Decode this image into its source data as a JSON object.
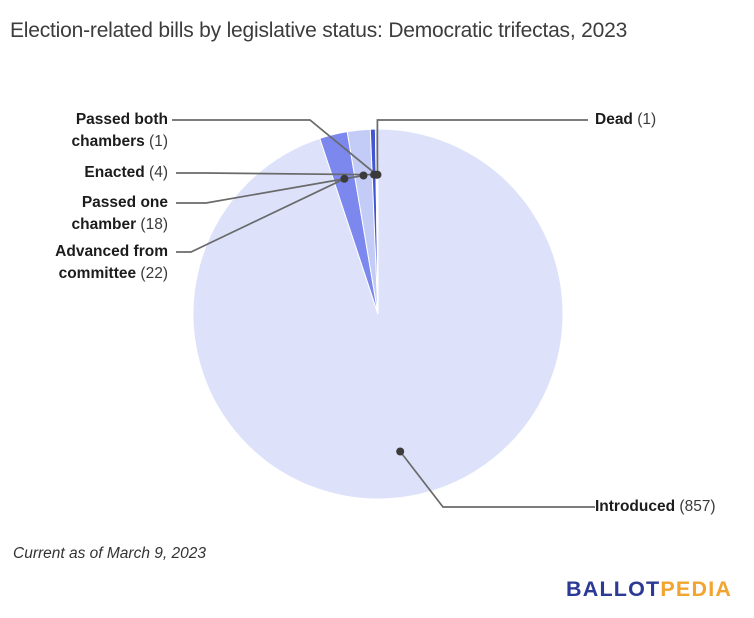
{
  "header": {
    "title": "Election-related bills by legislative status: Democratic trifectas, 2023"
  },
  "chart_data": {
    "type": "pie",
    "title": "Election-related bills by legislative status: Democratic trifectas, 2023",
    "direction": "clockwise",
    "start_angle_deg": 0,
    "slices": [
      {
        "label": "Introduced",
        "value": 857,
        "color": "#dde2fa"
      },
      {
        "label": "Advanced from committee",
        "value": 22,
        "color": "#7c88ee"
      },
      {
        "label": "Passed one chamber",
        "value": 18,
        "color": "#c2ccf7"
      },
      {
        "label": "Enacted",
        "value": 4,
        "color": "#4355d0"
      },
      {
        "label": "Passed both chambers",
        "value": 1,
        "color": "#2c3cab"
      },
      {
        "label": "Dead",
        "value": 1,
        "color": "#1d2b85"
      }
    ],
    "callout_style": {
      "leader_color": "#6a6a6a",
      "dot_color": "#3b3b3b"
    }
  },
  "callouts": {
    "passed_both": {
      "name": "Passed both chambers",
      "count": "(1)"
    },
    "enacted": {
      "name": "Enacted",
      "count": "(4)"
    },
    "passed_one": {
      "name": "Passed one chamber",
      "count": "(18)"
    },
    "advanced": {
      "name": "Advanced from committee",
      "count": "(22)"
    },
    "dead": {
      "name": "Dead",
      "count": "(1)"
    },
    "introduced": {
      "name": "Introduced",
      "count": "(857)"
    }
  },
  "footer": {
    "note": "Current as of March 9, 2023"
  },
  "logo": {
    "part1": "BALLOT",
    "part2": "PEDIA",
    "part1_color": "#2b3a94",
    "part2_color": "#f2a430"
  }
}
